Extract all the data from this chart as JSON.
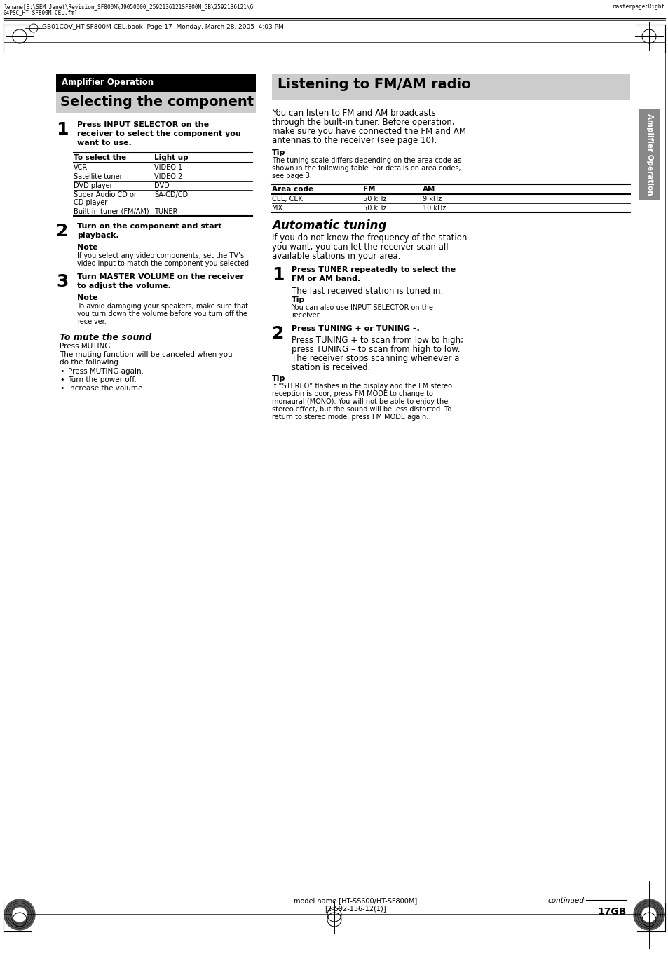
{
  "page_width": 9.54,
  "page_height": 13.64,
  "bg_color": "#ffffff",
  "header_text_line1": "lename[E:\\SEM_Janet\\Revision_SF800M\\J9050000_2592136121SF800M_GB\\2592136121\\G",
  "header_text_line2": "04PSC_HT-SF800M-CEL.fm]",
  "header_right": "masterpage:Right",
  "header_book": "GB01COV_HT-SF800M-CEL.book  Page 17  Monday, March 28, 2005  4:03 PM",
  "left_section_header_text": "Amplifier Operation",
  "left_section_subheader_text": "Selecting the component",
  "step1_num": "1",
  "step1_bold_parts": [
    "Press INPUT SELECTOR on the",
    "receiver to select the component you",
    "want to use."
  ],
  "table1_headers": [
    "To select the",
    "Light up"
  ],
  "table1_rows": [
    [
      "VCR",
      "VIDEO 1"
    ],
    [
      "Satellite tuner",
      "VIDEO 2"
    ],
    [
      "DVD player",
      "DVD"
    ],
    [
      "Super Audio CD or\nCD player",
      "SA-CD/CD"
    ],
    [
      "Built-in tuner (FM/AM)",
      "TUNER"
    ]
  ],
  "step2_num": "2",
  "step2_bold_parts": [
    "Turn on the component and start",
    "playback."
  ],
  "note1_title": "Note",
  "note1_text_parts": [
    "If you select any video components, set the TV’s",
    "video input to match the component you selected."
  ],
  "step3_num": "3",
  "step3_bold_parts": [
    "Turn MASTER VOLUME on the receiver",
    "to adjust the volume."
  ],
  "note2_title": "Note",
  "note2_text_parts": [
    "To avoid damaging your speakers, make sure that",
    "you turn down the volume before you turn off the",
    "receiver."
  ],
  "mute_title": "To mute the sound",
  "mute_text1": "Press MUTING.",
  "mute_text2_parts": [
    "The muting function will be canceled when you",
    "do the following."
  ],
  "mute_bullets": [
    "Press MUTING again.",
    "Turn the power off.",
    "Increase the volume."
  ],
  "right_title_text": "Listening to FM/AM radio",
  "right_intro_parts": [
    "You can listen to FM and AM broadcasts",
    "through the built-in tuner. Before operation,",
    "make sure you have connected the FM and AM",
    "antennas to the receiver (see page 10)."
  ],
  "tip1_title": "Tip",
  "tip1_text_parts": [
    "The tuning scale differs depending on the area code as",
    "shown in the following table. For details on area codes,",
    "see page 3."
  ],
  "table2_headers": [
    "Area code",
    "FM",
    "AM"
  ],
  "table2_rows": [
    [
      "CEL, CEK",
      "50 kHz",
      "9 kHz"
    ],
    [
      "MX",
      "50 kHz",
      "10 kHz"
    ]
  ],
  "auto_tuning_title": "Automatic tuning",
  "auto_tuning_intro_parts": [
    "If you do not know the frequency of the station",
    "you want, you can let the receiver scan all",
    "available stations in your area."
  ],
  "r_step1_num": "1",
  "r_step1_bold_parts": [
    "Press TUNER repeatedly to select the",
    "FM or AM band."
  ],
  "r_step1_text": "The last received station is tuned in.",
  "tip2_title": "Tip",
  "tip2_text_parts": [
    "You can also use INPUT SELECTOR on the",
    "receiver."
  ],
  "r_step2_num": "2",
  "r_step2_bold": "Press TUNING + or TUNING –.",
  "r_step2_text_parts": [
    "Press TUNING + to scan from low to high;",
    "press TUNING – to scan from high to low.",
    "The receiver stops scanning whenever a",
    "station is received."
  ],
  "tip3_title": "Tip",
  "tip3_text_parts": [
    "If “STEREO” flashes in the display and the FM stereo",
    "reception is poor, press FM MODE to change to",
    "monaural (MONO). You will not be able to enjoy the",
    "stereo effect, but the sound will be less distorted. To",
    "return to stereo mode, press FM MODE again."
  ],
  "sidebar_text": "Amplifier Operation",
  "footer_continued": "continued",
  "footer_page": "17GB",
  "footer_model_line1": "model name [HT-SS600/HT-SF800M]",
  "footer_model_line2": "[2-592-136-12(1)]"
}
